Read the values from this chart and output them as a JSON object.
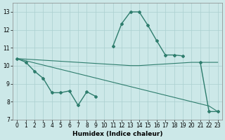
{
  "xlabel": "Humidex (Indice chaleur)",
  "x_values": [
    0,
    1,
    2,
    3,
    4,
    5,
    6,
    7,
    8,
    9,
    10,
    11,
    12,
    13,
    14,
    15,
    16,
    17,
    18,
    19,
    20,
    21,
    22,
    23
  ],
  "curve_y": [
    10.4,
    10.2,
    9.7,
    9.3,
    8.5,
    8.5,
    8.6,
    7.8,
    8.55,
    8.3,
    null,
    11.1,
    12.35,
    13.0,
    13.0,
    12.25,
    11.4,
    10.6,
    10.6,
    10.55,
    null,
    10.2,
    7.45,
    7.45
  ],
  "trend1_y": [
    10.4,
    10.37,
    10.34,
    10.31,
    10.28,
    10.25,
    10.22,
    10.19,
    10.16,
    10.13,
    10.1,
    10.07,
    10.04,
    10.01,
    10.01,
    10.04,
    10.07,
    10.1,
    10.13,
    10.16,
    10.19,
    10.19,
    10.19,
    10.19
  ],
  "trend2_y": [
    10.4,
    10.28,
    10.16,
    10.04,
    9.92,
    9.8,
    9.68,
    9.56,
    9.44,
    9.32,
    9.2,
    9.08,
    8.96,
    8.84,
    8.72,
    8.6,
    8.48,
    8.36,
    8.24,
    8.12,
    8.0,
    7.88,
    7.76,
    7.45
  ],
  "line_color": "#2e7d6d",
  "bg_color": "#cce8e8",
  "grid_color": "#aacfcf",
  "ylim": [
    7,
    13.5
  ],
  "xlim": [
    -0.5,
    23.5
  ],
  "yticks": [
    7,
    8,
    9,
    10,
    11,
    12,
    13
  ],
  "xticks": [
    0,
    1,
    2,
    3,
    4,
    5,
    6,
    7,
    8,
    9,
    10,
    11,
    12,
    13,
    14,
    15,
    16,
    17,
    18,
    19,
    20,
    21,
    22,
    23
  ]
}
